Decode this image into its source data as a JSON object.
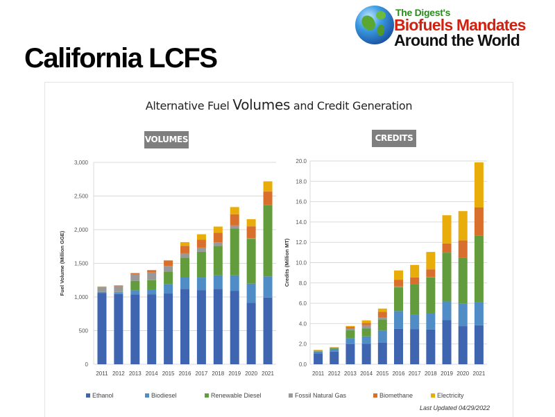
{
  "slide": {
    "title": "California LCFS"
  },
  "logo": {
    "line1": "The Digest's",
    "line2": "Biofuels Mandates",
    "line3": "Around the World",
    "icon": "globe-icon"
  },
  "panel": {
    "title_pre": "Alternative Fuel ",
    "title_big": "Volumes",
    "title_post": " and Credit Generation",
    "volumes_label": "VOLUMES",
    "credits_label": "CREDITS",
    "last_updated": "Last Updated 04/29/2022"
  },
  "colors": {
    "Ethanol": "#3f64b0",
    "Biodiesel": "#508dc6",
    "Renewable Diesel": "#629c3c",
    "Fossil Natural Gas": "#999999",
    "Biomethane": "#d86f2d",
    "Electricity": "#e8ad0a",
    "chip": "#7f7f7f"
  },
  "chart_data": [
    {
      "type": "bar",
      "stacked": true,
      "title": "VOLUMES",
      "xlabel": "",
      "ylabel": "Fuel Volume (Million GGE)",
      "ylim": [
        0,
        3000
      ],
      "yticks": [
        0,
        500,
        1000,
        1500,
        2000,
        2500,
        3000
      ],
      "ytick_labels": [
        "0",
        "500",
        "1,000",
        "1,500",
        "2,000",
        "2,500",
        "3,000"
      ],
      "grid": true,
      "legend_position": "bottom",
      "categories": [
        "2011",
        "2012",
        "2013",
        "2014",
        "2015",
        "2016",
        "2017",
        "2018",
        "2019",
        "2020",
        "2021"
      ],
      "series": [
        {
          "name": "Ethanol",
          "values": [
            1057,
            1044,
            1037,
            1040,
            1051,
            1120,
            1102,
            1120,
            1092,
            913,
            992
          ]
        },
        {
          "name": "Biodiesel",
          "values": [
            18,
            20,
            62,
            73,
            137,
            179,
            186,
            203,
            231,
            286,
            314
          ]
        },
        {
          "name": "Renewable Diesel",
          "values": [
            0,
            11,
            141,
            137,
            190,
            286,
            383,
            437,
            696,
            665,
            1057
          ]
        },
        {
          "name": "Fossil Natural Gas",
          "values": [
            72,
            86,
            100,
            114,
            83,
            65,
            62,
            52,
            44,
            10,
            0
          ]
        },
        {
          "name": "Biomethane",
          "values": [
            5,
            7,
            14,
            28,
            75,
            110,
            120,
            141,
            166,
            176,
            203
          ]
        },
        {
          "name": "Electricity",
          "values": [
            5,
            7,
            3,
            10,
            11,
            55,
            79,
            93,
            107,
            106,
            152
          ]
        }
      ]
    },
    {
      "type": "bar",
      "stacked": true,
      "title": "CREDITS",
      "xlabel": "",
      "ylabel": "Credits (Million MT)",
      "ylim": [
        0,
        20
      ],
      "yticks": [
        0,
        2,
        4,
        6,
        8,
        10,
        12,
        14,
        16,
        18,
        20
      ],
      "ytick_labels": [
        "0.0",
        "2.0",
        "4.0",
        "6.0",
        "8.0",
        "10.0",
        "12.0",
        "14.0",
        "16.0",
        "18.0",
        "20.0"
      ],
      "grid": true,
      "legend_position": "bottom",
      "categories": [
        "2011",
        "2012",
        "2013",
        "2014",
        "2015",
        "2016",
        "2017",
        "2018",
        "2019",
        "2020",
        "2021"
      ],
      "series": [
        {
          "name": "Ethanol",
          "values": [
            1.07,
            1.25,
            2.0,
            2.02,
            2.14,
            3.5,
            3.45,
            3.43,
            4.36,
            3.75,
            3.84
          ]
        },
        {
          "name": "Biodiesel",
          "values": [
            0.18,
            0.27,
            0.57,
            0.73,
            1.18,
            1.73,
            1.46,
            1.62,
            1.82,
            2.2,
            2.3
          ]
        },
        {
          "name": "Renewable Diesel",
          "values": [
            0.03,
            0.09,
            0.77,
            0.77,
            1.09,
            2.34,
            3.0,
            3.5,
            4.8,
            4.55,
            6.54
          ]
        },
        {
          "name": "Fossil Natural Gas",
          "values": [
            0.08,
            0.02,
            0.18,
            0.32,
            0.2,
            0.09,
            0.0,
            0.05,
            0.0,
            0.0,
            0.0
          ]
        },
        {
          "name": "Biomethane",
          "values": [
            0.03,
            0.02,
            0.16,
            0.23,
            0.55,
            0.66,
            0.64,
            0.74,
            0.91,
            1.68,
            2.75
          ]
        },
        {
          "name": "Electricity",
          "values": [
            0.02,
            0.03,
            0.09,
            0.25,
            0.32,
            0.91,
            1.22,
            1.71,
            2.77,
            2.89,
            4.43
          ]
        }
      ]
    }
  ],
  "legend": [
    "Ethanol",
    "Biodiesel",
    "Renewable Diesel",
    "Fossil Natural Gas",
    "Biomethane",
    "Electricity"
  ]
}
